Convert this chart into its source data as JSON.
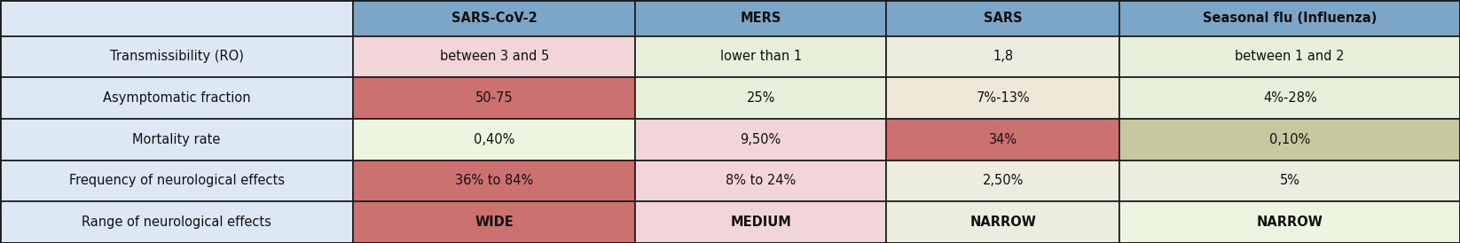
{
  "headers": [
    "",
    "SARS-CoV-2",
    "MERS",
    "SARS",
    "Seasonal flu (Influenza)"
  ],
  "rows": [
    [
      "Transmissibility (RO)",
      "between 3 and 5",
      "lower than 1",
      "1,8",
      "between 1 and 2"
    ],
    [
      "Asymptomatic fraction",
      "50-75",
      "25%",
      "7%-13%",
      "4%-28%"
    ],
    [
      "Mortality rate",
      "0,40%",
      "9,50%",
      "34%",
      "0,10%"
    ],
    [
      "Frequency of neurological effects",
      "36% to 84%",
      "8% to 24%",
      "2,50%",
      "5%"
    ],
    [
      "Range of neurological effects",
      "WIDE",
      "MEDIUM",
      "NARROW",
      "NARROW"
    ]
  ],
  "header_bg_col0": "#dce9f5",
  "header_bg": "#7ca6c8",
  "row_label_bg": "#dce9f5",
  "cell_colors": [
    [
      "#f2d5d8",
      "#e8f0dc",
      "#ededdf",
      "#e8f0dc"
    ],
    [
      "#cc7070",
      "#e8f0dc",
      "#ede8d8",
      "#e8f0dc"
    ],
    [
      "#edf4df",
      "#f2d5d8",
      "#cc7070",
      "#c8c8a0"
    ],
    [
      "#cc7070",
      "#f2d5d8",
      "#ededdf",
      "#ededdf"
    ],
    [
      "#cc7070",
      "#f2d5d8",
      "#ededdf",
      "#edf4df"
    ]
  ],
  "border_color": "#1a1a1a",
  "cell_text_color": "#111111",
  "fig_width": 16.46,
  "fig_height": 2.74,
  "dpi": 100
}
